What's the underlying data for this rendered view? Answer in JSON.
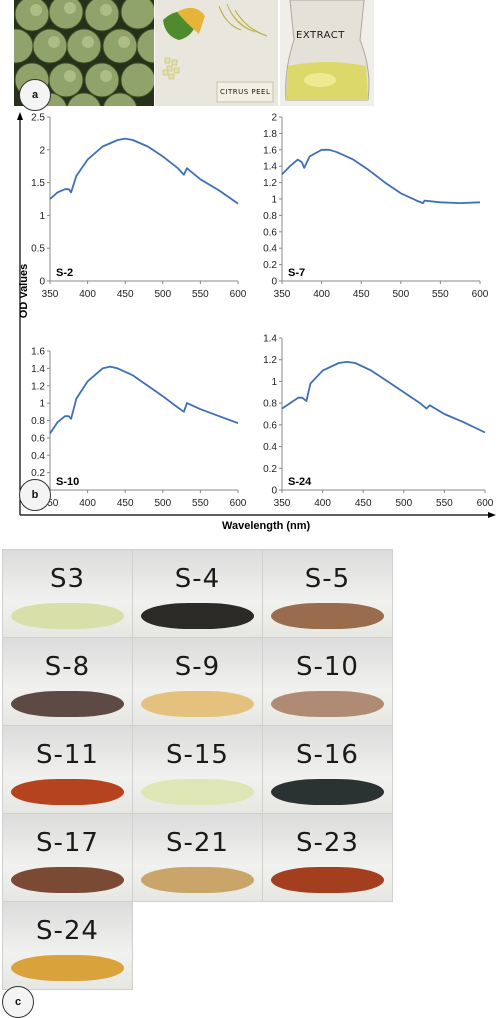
{
  "panel_a": {
    "badge": "a",
    "extract_label": "EXTRACT",
    "peel_label": "CITRUS PEEL"
  },
  "panel_b": {
    "badge": "b",
    "ylabel": "OD Values",
    "xlabel": "Wavelength (nm)"
  },
  "panel_c": {
    "badge": "c",
    "samples": [
      {
        "label": "S3",
        "color": "#d8dfa8"
      },
      {
        "label": "S-4",
        "color": "#2b2a27"
      },
      {
        "label": "S-5",
        "color": "#9a6c4e"
      },
      {
        "label": "S-8",
        "color": "#5d4a45"
      },
      {
        "label": "S-9",
        "color": "#e4c27d"
      },
      {
        "label": "S-10",
        "color": "#b08b74"
      },
      {
        "label": "S-11",
        "color": "#b5431d"
      },
      {
        "label": "S-15",
        "color": "#dfe6b5"
      },
      {
        "label": "S-16",
        "color": "#2a3331"
      },
      {
        "label": "S-17",
        "color": "#7a4a35"
      },
      {
        "label": "S-21",
        "color": "#c9a56a"
      },
      {
        "label": "S-23",
        "color": "#a33e1f"
      },
      {
        "label": "S-24",
        "color": "#d9a23a"
      }
    ]
  },
  "chart_data": [
    {
      "type": "line",
      "annotation": "S-2",
      "xlim": [
        350,
        600
      ],
      "ylim": [
        0,
        2.5
      ],
      "xticks": [
        "350",
        "400",
        "450",
        "500",
        "550",
        "600"
      ],
      "yticks": [
        "0",
        "0.5",
        "1",
        "1.5",
        "2",
        "2.5"
      ],
      "series": [
        {
          "x": [
            350,
            360,
            370,
            375,
            378,
            385,
            400,
            420,
            440,
            450,
            460,
            480,
            500,
            520,
            528,
            532,
            550,
            575,
            600
          ],
          "y": [
            1.25,
            1.35,
            1.4,
            1.4,
            1.35,
            1.6,
            1.85,
            2.05,
            2.15,
            2.17,
            2.15,
            2.05,
            1.9,
            1.72,
            1.62,
            1.72,
            1.55,
            1.38,
            1.18
          ]
        }
      ]
    },
    {
      "type": "line",
      "annotation": "S-7",
      "xlim": [
        350,
        600
      ],
      "ylim": [
        0,
        2
      ],
      "xticks": [
        "350",
        "400",
        "450",
        "500",
        "550",
        "600"
      ],
      "yticks": [
        "0",
        "0.2",
        "0.4",
        "0.6",
        "0.8",
        "1",
        "1.2",
        "1.4",
        "1.6",
        "1.8",
        "2"
      ],
      "series": [
        {
          "x": [
            350,
            360,
            370,
            375,
            378,
            385,
            400,
            410,
            420,
            440,
            460,
            480,
            500,
            520,
            528,
            530,
            550,
            575,
            600
          ],
          "y": [
            1.3,
            1.4,
            1.48,
            1.45,
            1.38,
            1.52,
            1.6,
            1.6,
            1.57,
            1.48,
            1.35,
            1.2,
            1.07,
            0.98,
            0.95,
            0.98,
            0.96,
            0.95,
            0.96
          ]
        }
      ]
    },
    {
      "type": "line",
      "annotation": "S-10",
      "xlim": [
        350,
        600
      ],
      "ylim": [
        0,
        1.6
      ],
      "xticks": [
        "350",
        "400",
        "450",
        "500",
        "550",
        "600"
      ],
      "yticks": [
        "0",
        "0.2",
        "0.4",
        "0.6",
        "0.8",
        "1",
        "1.2",
        "1.4",
        "1.6"
      ],
      "series": [
        {
          "x": [
            350,
            360,
            370,
            375,
            378,
            385,
            400,
            420,
            430,
            440,
            460,
            480,
            500,
            520,
            528,
            532,
            550,
            575,
            600
          ],
          "y": [
            0.65,
            0.78,
            0.85,
            0.85,
            0.82,
            1.05,
            1.25,
            1.4,
            1.42,
            1.4,
            1.32,
            1.2,
            1.08,
            0.95,
            0.9,
            1.0,
            0.93,
            0.85,
            0.77
          ]
        }
      ]
    },
    {
      "type": "line",
      "annotation": "S-24",
      "xlim": [
        350,
        600
      ],
      "ylim": [
        0,
        1.4
      ],
      "xticks": [
        "350",
        "400",
        "450",
        "500",
        "550",
        "600"
      ],
      "yticks": [
        "0",
        "0.2",
        "0.4",
        "0.6",
        "0.8",
        "1",
        "1.2",
        "1.4"
      ],
      "series": [
        {
          "x": [
            350,
            360,
            370,
            375,
            380,
            385,
            400,
            420,
            430,
            440,
            460,
            480,
            500,
            520,
            528,
            532,
            550,
            575,
            600
          ],
          "y": [
            0.75,
            0.8,
            0.85,
            0.85,
            0.82,
            0.98,
            1.1,
            1.17,
            1.18,
            1.17,
            1.1,
            1.0,
            0.9,
            0.8,
            0.75,
            0.78,
            0.7,
            0.62,
            0.53
          ]
        }
      ]
    }
  ]
}
